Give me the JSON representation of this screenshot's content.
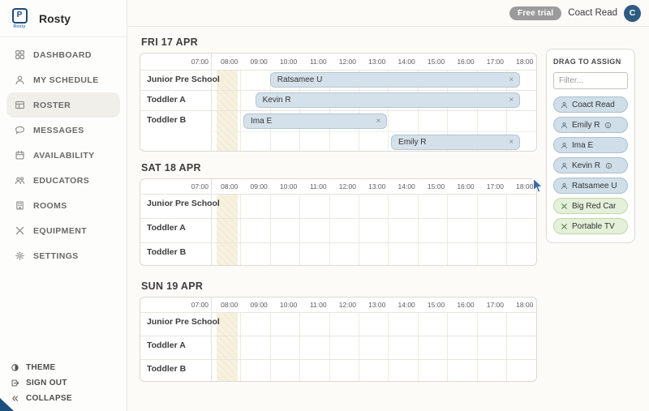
{
  "brand": {
    "name": "Rosty",
    "logo_caption": "Rosty",
    "logo_glyph": "P"
  },
  "header": {
    "trial_badge": "Free trial",
    "user_name": "Coact Read",
    "avatar_initial": "C"
  },
  "sidebar": {
    "items": [
      {
        "label": "DASHBOARD",
        "icon": "grid",
        "active": false
      },
      {
        "label": "MY SCHEDULE",
        "icon": "person",
        "active": false
      },
      {
        "label": "ROSTER",
        "icon": "table",
        "active": true
      },
      {
        "label": "MESSAGES",
        "icon": "chat",
        "active": false
      },
      {
        "label": "AVAILABILITY",
        "icon": "calendar",
        "active": false
      },
      {
        "label": "EDUCATORS",
        "icon": "people",
        "active": false
      },
      {
        "label": "ROOMS",
        "icon": "building",
        "active": false
      },
      {
        "label": "EQUIPMENT",
        "icon": "tools",
        "active": false
      },
      {
        "label": "SETTINGS",
        "icon": "gear",
        "active": false
      }
    ],
    "footer_items": [
      {
        "label": "THEME",
        "icon": "contrast"
      },
      {
        "label": "SIGN OUT",
        "icon": "exit"
      },
      {
        "label": "COLLAPSE",
        "icon": "chevrons"
      }
    ]
  },
  "schedule": {
    "time_labels": [
      "07:00",
      "08:00",
      "09:00",
      "10:00",
      "11:00",
      "12:00",
      "13:00",
      "14:00",
      "15:00",
      "16:00",
      "17:00",
      "18:00"
    ],
    "timeline_start_hour": 7,
    "close_glyph": "×",
    "days": [
      {
        "label": "FRI 17 APR",
        "rooms": [
          {
            "name": "Junior Pre School",
            "lanes": 1,
            "events": [
              {
                "title": "Ratsamee U",
                "start": 9.0,
                "end": 17.5,
                "lane": 0
              }
            ]
          },
          {
            "name": "Toddler A",
            "lanes": 1,
            "events": [
              {
                "title": "Kevin R",
                "start": 8.5,
                "end": 17.5,
                "lane": 0
              }
            ]
          },
          {
            "name": "Toddler B",
            "lanes": 2,
            "events": [
              {
                "title": "Ima E",
                "start": 8.1,
                "end": 13.0,
                "lane": 0
              },
              {
                "title": "Emily R",
                "start": 13.1,
                "end": 17.5,
                "lane": 1
              }
            ]
          }
        ]
      },
      {
        "label": "SAT 18 APR",
        "rooms": [
          {
            "name": "Junior Pre School",
            "lanes": 1,
            "events": []
          },
          {
            "name": "Toddler A",
            "lanes": 1,
            "events": []
          },
          {
            "name": "Toddler B",
            "lanes": 1,
            "events": []
          }
        ]
      },
      {
        "label": "SUN 19 APR",
        "rooms": [
          {
            "name": "Junior Pre School",
            "lanes": 1,
            "events": []
          },
          {
            "name": "Toddler A",
            "lanes": 1,
            "events": []
          },
          {
            "name": "Toddler B",
            "lanes": 1,
            "events": []
          }
        ]
      }
    ]
  },
  "assign_panel": {
    "title": "DRAG TO ASSIGN",
    "filter_placeholder": "Filter...",
    "people": [
      {
        "label": "Coact Read",
        "info": false
      },
      {
        "label": "Emily R",
        "info": true
      },
      {
        "label": "Ima E",
        "info": false
      },
      {
        "label": "Kevin R",
        "info": true
      },
      {
        "label": "Ratsamee U",
        "info": false
      }
    ],
    "equipment": [
      {
        "label": "Big Red Car"
      },
      {
        "label": "Portable TV"
      }
    ]
  },
  "colors": {
    "event_fill": "#d5e1ea",
    "event_border": "#b3c6d3",
    "person_pill": "#cfdee8",
    "equipment_pill": "#e4f0d9",
    "avatar_bg": "#2e5c82",
    "badge_bg": "#9b9b9b",
    "closed_hours_band": "#f5efdb"
  }
}
